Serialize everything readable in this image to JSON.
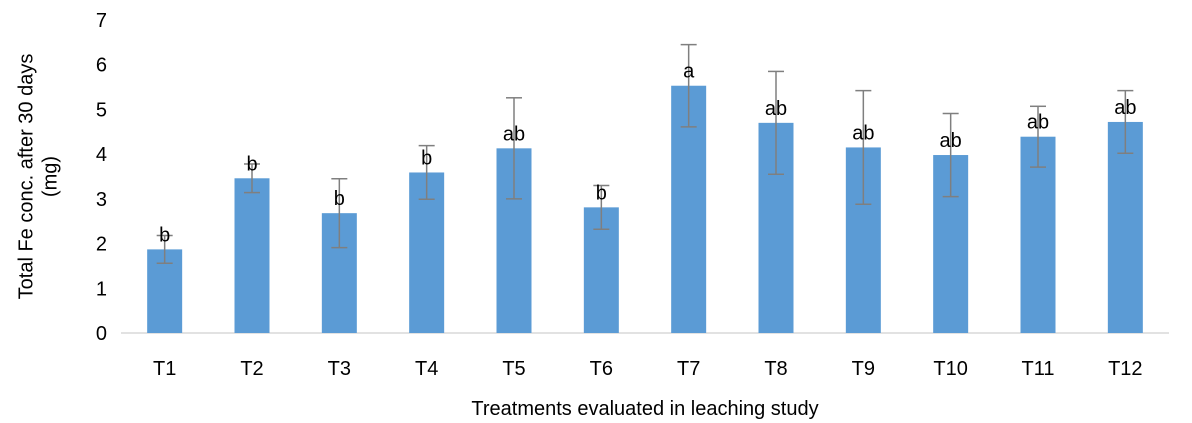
{
  "chart_data": {
    "type": "bar",
    "title": "",
    "xlabel": "Treatments evaluated in leaching study",
    "ylabel_lines": [
      "Total Fe conc. after 30 days",
      "(mg)"
    ],
    "ylim": [
      0,
      7
    ],
    "yticks": [
      0,
      1,
      2,
      3,
      4,
      5,
      6,
      7
    ],
    "grid": false,
    "legend": "none",
    "bar_color": "#5b9bd5",
    "error_bar_color": "#7f7f7f",
    "categories": [
      "T1",
      "T2",
      "T3",
      "T4",
      "T5",
      "T6",
      "T7",
      "T8",
      "T9",
      "T10",
      "T11",
      "T12"
    ],
    "values": [
      1.87,
      3.46,
      2.68,
      3.59,
      4.13,
      2.81,
      5.53,
      4.7,
      4.15,
      3.98,
      4.39,
      4.72
    ],
    "error": [
      0.31,
      0.32,
      0.77,
      0.6,
      1.13,
      0.49,
      0.92,
      1.15,
      1.27,
      0.93,
      0.68,
      0.7
    ],
    "significance_letters": [
      "b",
      "b",
      "b",
      "b",
      "ab",
      "b",
      "a",
      "ab",
      "ab",
      "ab",
      "ab",
      "ab"
    ]
  }
}
